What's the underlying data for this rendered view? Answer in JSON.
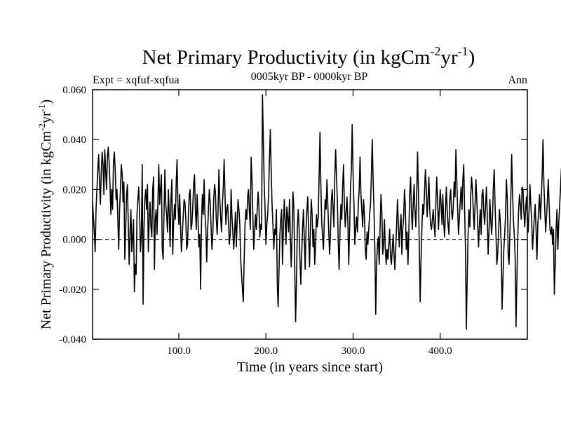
{
  "chart_data": {
    "type": "line",
    "title_main": "Net Primary Productivity (in kgCm",
    "title_sup1": "-2",
    "title_mid": "yr",
    "title_sup2": "-1",
    "title_end": ")",
    "subtitle": "0005kyr BP - 0000kyr BP",
    "left_label": "Expt = xqfuf-xqfua",
    "right_label": "Ann",
    "xlabel": "Time (in years since start)",
    "ylabel_main": "Net Primary Productivity (in kgCm",
    "ylabel_sup1": "-2",
    "ylabel_mid": "yr",
    "ylabel_sup2": "-1",
    "ylabel_end": ")",
    "xlim": [
      1,
      500
    ],
    "ylim": [
      -0.04,
      0.06
    ],
    "xticks": [
      100,
      200,
      300,
      400
    ],
    "xtick_labels": [
      "100.0",
      "200.0",
      "300.0",
      "400.0"
    ],
    "yticks": [
      -0.04,
      -0.02,
      0.0,
      0.02,
      0.04,
      0.06
    ],
    "ytick_labels": [
      "-0.040",
      "-0.020",
      "0.000",
      "0.020",
      "0.040",
      "0.060"
    ],
    "zero_line": 0.0,
    "series": [
      {
        "name": "NPP anomaly",
        "color": "#000000",
        "x_start": 1,
        "x_step": 1,
        "values": [
          0.015,
          0.009,
          0.003,
          -0.005,
          0.012,
          0.02,
          0.028,
          0.034,
          0.022,
          0.014,
          0.027,
          0.035,
          0.03,
          0.018,
          0.036,
          0.028,
          0.02,
          0.033,
          0.037,
          0.031,
          0.022,
          0.01,
          0.02,
          0.012,
          0.031,
          0.035,
          0.028,
          0.016,
          0.02,
          0.008,
          -0.004,
          0.012,
          0.02,
          0.03,
          0.026,
          0.015,
          0.023,
          -0.008,
          0.004,
          0.018,
          0.022,
          0.006,
          -0.01,
          0.003,
          0.012,
          -0.005,
          0.001,
          0.008,
          -0.021,
          -0.01,
          -0.014,
          0.01,
          0.016,
          0.021,
          0.01,
          -0.005,
          0.002,
          0.03,
          -0.026,
          0.004,
          0.016,
          0.02,
          0.012,
          0.022,
          -0.005,
          0.008,
          0.015,
          0.005,
          0.001,
          0.02,
          0.025,
          -0.012,
          0.008,
          0.012,
          0.002,
          0.015,
          0.03,
          0.014,
          0.02,
          0.026,
          -0.004,
          -0.008,
          0.01,
          0.028,
          0.014,
          0.01,
          0.003,
          0.02,
          0.01,
          -0.003,
          0.016,
          0.024,
          -0.006,
          0.006,
          0.014,
          0.008,
          0.023,
          0.032,
          0.014,
          0.006,
          0.018,
          0.005,
          -0.005,
          0.002,
          0.009,
          0.016,
          0.015,
          0.008,
          -0.004,
          -0.002,
          0.01,
          0.018,
          0.02,
          0.004,
          0.006,
          0.013,
          0.022,
          0.026,
          0.012,
          0.004,
          0.018,
          0.009,
          -0.003,
          0.002,
          -0.02,
          0.006,
          0.018,
          0.01,
          0.024,
          0.01,
          0.005,
          -0.009,
          0.003,
          0.012,
          0.02,
          0.015,
          0.005,
          -0.004,
          0.002,
          0.016,
          0.022,
          0.019,
          0.008,
          0.002,
          0.011,
          0.028,
          0.016,
          0.009,
          0.003,
          0.014,
          0.021,
          0.032,
          0.018,
          0.006,
          0.012,
          0.014,
          0.007,
          -0.002,
          0.002,
          0.02,
          0.009,
          0.003,
          -0.004,
          0.003,
          0.011,
          -0.003,
          0.008,
          0.016,
          0.012,
          0.006,
          -0.008,
          -0.014,
          -0.02,
          -0.025,
          -0.008,
          0.006,
          0.012,
          0.008,
          0.017,
          0.02,
          0.011,
          0.004,
          0.033,
          0.024,
          0.009,
          -0.004,
          0.003,
          0.01,
          0.004,
          0.012,
          0.019,
          0.013,
          0.001,
          0.006,
          0.004,
          0.058,
          0.04,
          0.022,
          0.012,
          -0.002,
          0.006,
          0.01,
          0.018,
          0.032,
          0.044,
          0.028,
          0.014,
          0.006,
          -0.004,
          0.004,
          0.002,
          0.012,
          -0.018,
          -0.027,
          -0.012,
          0.002,
          0.008,
          0.012,
          -0.01,
          0.004,
          0.016,
          0.008,
          -0.002,
          0.013,
          0.009,
          0.003,
          0.016,
          0.001,
          -0.011,
          0.002,
          0.019,
          0.013,
          -0.01,
          -0.033,
          -0.018,
          0.004,
          0.012,
          0.005,
          -0.008,
          -0.018,
          -0.006,
          0.004,
          0.012,
          0.001,
          -0.012,
          0.004,
          0.012,
          0.017,
          0.002,
          -0.011,
          0.004,
          0.016,
          0.01,
          -0.003,
          0.004,
          -0.01,
          -0.002,
          0.01,
          0.005,
          0.009,
          0.025,
          0.043,
          0.022,
          0.007,
          0.001,
          -0.004,
          0.008,
          0.016,
          0.012,
          0.024,
          0.014,
          0.004,
          -0.006,
          0.001,
          0.015,
          0.02,
          0.013,
          0.005,
          0.025,
          0.036,
          0.025,
          0.015,
          -0.002,
          -0.012,
          0.004,
          0.014,
          0.008,
          0.021,
          0.03,
          0.014,
          0.005,
          0.011,
          0.017,
          0.007,
          -0.01,
          0.004,
          0.02,
          0.028,
          0.046,
          0.026,
          0.014,
          -0.002,
          0.004,
          0.009,
          0.003,
          0.014,
          0.02,
          0.033,
          0.018,
          0.012,
          0.005,
          0.016,
          0.01,
          -0.004,
          -0.008,
          0.003,
          -0.002,
          0.004,
          0.01,
          0.014,
          0.026,
          0.04,
          0.024,
          0.012,
          -0.004,
          -0.03,
          -0.01,
          -0.002,
          0.001,
          -0.01,
          0.005,
          0.018,
          0.011,
          -0.006,
          -0.002,
          0.008,
          -0.004,
          -0.01,
          -0.004,
          -0.008,
          -0.002,
          0.004,
          -0.007,
          -0.01,
          -0.004,
          0.002,
          -0.006,
          -0.012,
          -0.003,
          0.006,
          0.016,
          0.006,
          -0.003,
          0.005,
          0.01,
          -0.006,
          0.004,
          0.009,
          0.02,
          0.013,
          -0.004,
          0.003,
          -0.01,
          0.003,
          0.018,
          0.025,
          0.011,
          0.004,
          0.014,
          0.022,
          0.012,
          0.005,
          0.018,
          0.035,
          0.019,
          -0.003,
          -0.025,
          -0.008,
          0.005,
          0.014,
          0.01,
          0.019,
          0.028,
          0.021,
          0.009,
          0.016,
          0.025,
          0.012,
          0.006,
          0.004,
          0.008,
          0.012,
          0.006,
          0.001,
          0.014,
          0.025,
          0.016,
          0.004,
          0.012,
          0.02,
          0.014,
          0.006,
          0.018,
          0.007,
          0.001,
          0.011,
          0.021,
          0.012,
          0.006,
          0.002,
          0.016,
          0.02,
          0.011,
          0.008,
          0.013,
          0.023,
          0.017,
          0.036,
          0.024,
          0.012,
          0.002,
          0.009,
          0.015,
          0.021,
          0.012,
          0.024,
          0.03,
          0.012,
          -0.004,
          -0.036,
          -0.015,
          0.002,
          0.012,
          0.005,
          0.017,
          0.025,
          0.02,
          0.011,
          0.004,
          0.014,
          0.024,
          0.016,
          0.006,
          -0.003,
          0.006,
          0.012,
          0.002,
          0.018,
          0.02,
          0.011,
          0.006,
          0.013,
          0.021,
          0.01,
          -0.006,
          0.003,
          0.016,
          0.008,
          0.002,
          0.009,
          0.021,
          0.028,
          0.013,
          0.002,
          -0.01,
          -0.006,
          0.003,
          0.012,
          0.007,
          -0.002,
          -0.028,
          -0.016,
          -0.004,
          0.002,
          0.01,
          0.024,
          0.016,
          -0.006,
          -0.01,
          0.003,
          0.016,
          0.034,
          0.019,
          0.008,
          0.002,
          -0.007,
          -0.035,
          -0.016,
          0.001,
          0.012,
          0.018,
          0.014,
          0.008,
          0.021,
          0.02,
          0.011,
          0.005,
          0.012,
          0.017,
          0.009,
          0.003,
          0.012,
          0.022,
          0.014,
          0.007,
          -0.004,
          0.003,
          0.009,
          0.014,
          0.004,
          -0.008,
          0.006,
          0.012,
          0.018,
          0.008,
          0.016,
          0.026,
          0.04,
          0.022,
          0.012,
          0.003,
          0.009,
          0.016,
          0.024,
          0.014,
          0.004,
          0.002,
          0.005,
          -0.002,
          0.004,
          -0.022,
          -0.01,
          0.004,
          0.012,
          -0.004,
          0.006,
          0.013,
          0.02,
          0.028,
          0.031,
          0.015,
          0.004,
          -0.006
        ]
      }
    ]
  }
}
